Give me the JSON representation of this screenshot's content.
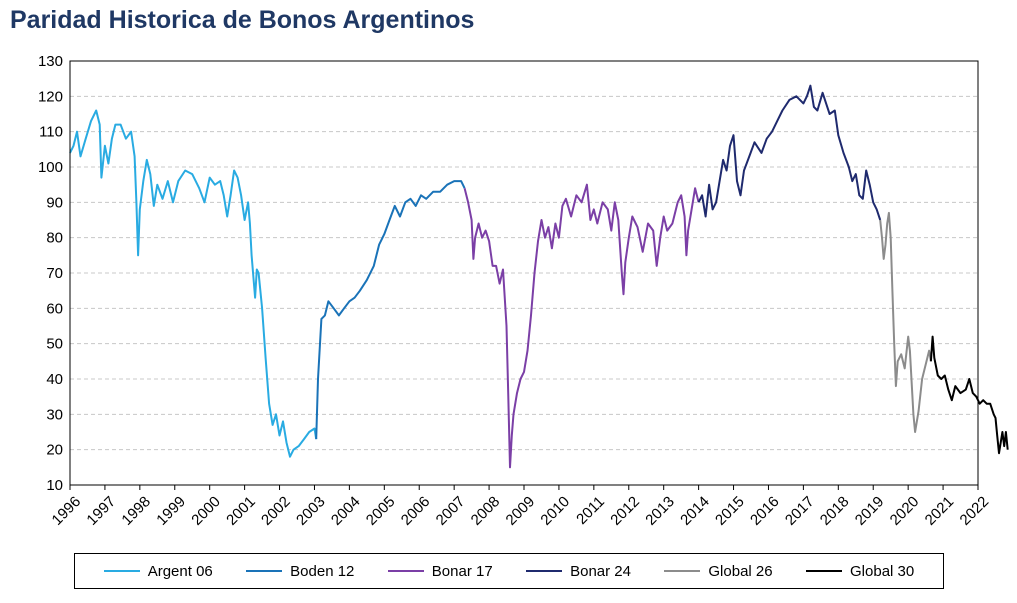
{
  "chart_data": {
    "type": "line",
    "title": "Paridad Historica de Bonos Argentinos",
    "xlabel": "",
    "ylabel": "",
    "xlim": [
      1996,
      2022
    ],
    "ylim": [
      10,
      130
    ],
    "yticks": [
      10,
      20,
      30,
      40,
      50,
      60,
      70,
      80,
      90,
      100,
      110,
      120,
      130
    ],
    "xticks": [
      "1996",
      "1997",
      "1998",
      "1999",
      "2000",
      "2001",
      "2002",
      "2003",
      "2004",
      "2005",
      "2006",
      "2007",
      "2008",
      "2009",
      "2010",
      "2011",
      "2012",
      "2013",
      "2014",
      "2015",
      "2016",
      "2017",
      "2018",
      "2019",
      "2020",
      "2021",
      "2022"
    ],
    "grid": true,
    "legend_position": "bottom",
    "series": [
      {
        "name": "Argent 06",
        "color": "#29abe2",
        "points": [
          [
            1996.0,
            104
          ],
          [
            1996.1,
            106
          ],
          [
            1996.2,
            110
          ],
          [
            1996.3,
            103
          ],
          [
            1996.45,
            108
          ],
          [
            1996.6,
            113
          ],
          [
            1996.75,
            116
          ],
          [
            1996.85,
            112
          ],
          [
            1996.9,
            97
          ],
          [
            1997.0,
            106
          ],
          [
            1997.1,
            101
          ],
          [
            1997.2,
            108
          ],
          [
            1997.3,
            112
          ],
          [
            1997.45,
            112
          ],
          [
            1997.6,
            108
          ],
          [
            1997.75,
            110
          ],
          [
            1997.85,
            103
          ],
          [
            1997.9,
            90
          ],
          [
            1997.95,
            75
          ],
          [
            1998.0,
            88
          ],
          [
            1998.1,
            96
          ],
          [
            1998.2,
            102
          ],
          [
            1998.3,
            98
          ],
          [
            1998.4,
            89
          ],
          [
            1998.5,
            95
          ],
          [
            1998.65,
            91
          ],
          [
            1998.8,
            96
          ],
          [
            1998.95,
            90
          ],
          [
            1999.1,
            96
          ],
          [
            1999.3,
            99
          ],
          [
            1999.5,
            98
          ],
          [
            1999.7,
            94
          ],
          [
            1999.85,
            90
          ],
          [
            2000.0,
            97
          ],
          [
            2000.15,
            95
          ],
          [
            2000.3,
            96
          ],
          [
            2000.4,
            92
          ],
          [
            2000.5,
            86
          ],
          [
            2000.6,
            92
          ],
          [
            2000.7,
            99
          ],
          [
            2000.8,
            97
          ],
          [
            2000.9,
            92
          ],
          [
            2001.0,
            85
          ],
          [
            2001.1,
            90
          ],
          [
            2001.15,
            84
          ],
          [
            2001.2,
            75
          ],
          [
            2001.3,
            63
          ],
          [
            2001.35,
            71
          ],
          [
            2001.4,
            70
          ],
          [
            2001.5,
            60
          ],
          [
            2001.6,
            46
          ],
          [
            2001.7,
            33
          ],
          [
            2001.8,
            27
          ],
          [
            2001.9,
            30
          ],
          [
            2002.0,
            24
          ],
          [
            2002.1,
            28
          ],
          [
            2002.2,
            22
          ],
          [
            2002.3,
            18
          ],
          [
            2002.4,
            20
          ],
          [
            2002.55,
            21
          ],
          [
            2002.7,
            23
          ],
          [
            2002.85,
            25
          ],
          [
            2003.0,
            26
          ],
          [
            2003.05,
            23
          ]
        ]
      },
      {
        "name": "Boden 12",
        "color": "#1a73b8",
        "points": [
          [
            2003.05,
            23
          ],
          [
            2003.1,
            40
          ],
          [
            2003.2,
            57
          ],
          [
            2003.3,
            58
          ],
          [
            2003.4,
            62
          ],
          [
            2003.55,
            60
          ],
          [
            2003.7,
            58
          ],
          [
            2003.85,
            60
          ],
          [
            2004.0,
            62
          ],
          [
            2004.15,
            63
          ],
          [
            2004.3,
            65
          ],
          [
            2004.5,
            68
          ],
          [
            2004.7,
            72
          ],
          [
            2004.85,
            78
          ],
          [
            2005.0,
            81
          ],
          [
            2005.15,
            85
          ],
          [
            2005.3,
            89
          ],
          [
            2005.45,
            86
          ],
          [
            2005.6,
            90
          ],
          [
            2005.75,
            91
          ],
          [
            2005.9,
            89
          ],
          [
            2006.05,
            92
          ],
          [
            2006.2,
            91
          ],
          [
            2006.4,
            93
          ],
          [
            2006.6,
            93
          ],
          [
            2006.8,
            95
          ],
          [
            2007.0,
            96
          ],
          [
            2007.2,
            96
          ],
          [
            2007.3,
            94
          ]
        ]
      },
      {
        "name": "Bonar 17",
        "color": "#7b3fa6",
        "points": [
          [
            2007.3,
            94
          ],
          [
            2007.4,
            90
          ],
          [
            2007.5,
            85
          ],
          [
            2007.55,
            74
          ],
          [
            2007.6,
            80
          ],
          [
            2007.7,
            84
          ],
          [
            2007.8,
            80
          ],
          [
            2007.9,
            82
          ],
          [
            2008.0,
            79
          ],
          [
            2008.1,
            72
          ],
          [
            2008.2,
            72
          ],
          [
            2008.3,
            67
          ],
          [
            2008.4,
            71
          ],
          [
            2008.5,
            55
          ],
          [
            2008.55,
            35
          ],
          [
            2008.6,
            15
          ],
          [
            2008.65,
            24
          ],
          [
            2008.7,
            30
          ],
          [
            2008.8,
            36
          ],
          [
            2008.9,
            40
          ],
          [
            2009.0,
            42
          ],
          [
            2009.1,
            48
          ],
          [
            2009.2,
            58
          ],
          [
            2009.3,
            70
          ],
          [
            2009.4,
            79
          ],
          [
            2009.5,
            85
          ],
          [
            2009.6,
            80
          ],
          [
            2009.7,
            83
          ],
          [
            2009.8,
            77
          ],
          [
            2009.9,
            84
          ],
          [
            2010.0,
            80
          ],
          [
            2010.1,
            89
          ],
          [
            2010.2,
            91
          ],
          [
            2010.35,
            86
          ],
          [
            2010.5,
            92
          ],
          [
            2010.65,
            90
          ],
          [
            2010.8,
            95
          ],
          [
            2010.9,
            85
          ],
          [
            2011.0,
            88
          ],
          [
            2011.1,
            84
          ],
          [
            2011.25,
            90
          ],
          [
            2011.4,
            88
          ],
          [
            2011.5,
            82
          ],
          [
            2011.6,
            90
          ],
          [
            2011.7,
            85
          ],
          [
            2011.8,
            70
          ],
          [
            2011.85,
            64
          ],
          [
            2011.9,
            73
          ],
          [
            2012.0,
            80
          ],
          [
            2012.1,
            86
          ],
          [
            2012.25,
            83
          ],
          [
            2012.4,
            76
          ],
          [
            2012.55,
            84
          ],
          [
            2012.7,
            82
          ],
          [
            2012.8,
            72
          ],
          [
            2012.9,
            80
          ],
          [
            2013.0,
            86
          ],
          [
            2013.1,
            82
          ],
          [
            2013.25,
            84
          ],
          [
            2013.4,
            90
          ],
          [
            2013.5,
            92
          ],
          [
            2013.6,
            86
          ],
          [
            2013.65,
            75
          ],
          [
            2013.7,
            82
          ],
          [
            2013.8,
            88
          ],
          [
            2013.9,
            94
          ],
          [
            2014.0,
            90
          ]
        ]
      },
      {
        "name": "Bonar 24",
        "color": "#1f2a6e",
        "points": [
          [
            2014.0,
            90
          ],
          [
            2014.1,
            92
          ],
          [
            2014.2,
            86
          ],
          [
            2014.3,
            95
          ],
          [
            2014.4,
            88
          ],
          [
            2014.5,
            90
          ],
          [
            2014.6,
            96
          ],
          [
            2014.7,
            102
          ],
          [
            2014.8,
            99
          ],
          [
            2014.9,
            106
          ],
          [
            2015.0,
            109
          ],
          [
            2015.1,
            96
          ],
          [
            2015.2,
            92
          ],
          [
            2015.3,
            99
          ],
          [
            2015.45,
            103
          ],
          [
            2015.6,
            107
          ],
          [
            2015.8,
            104
          ],
          [
            2015.95,
            108
          ],
          [
            2016.1,
            110
          ],
          [
            2016.25,
            113
          ],
          [
            2016.4,
            116
          ],
          [
            2016.6,
            119
          ],
          [
            2016.8,
            120
          ],
          [
            2017.0,
            118
          ],
          [
            2017.1,
            120
          ],
          [
            2017.2,
            123
          ],
          [
            2017.3,
            117
          ],
          [
            2017.4,
            116
          ],
          [
            2017.55,
            121
          ],
          [
            2017.65,
            118
          ],
          [
            2017.75,
            115
          ],
          [
            2017.9,
            116
          ],
          [
            2018.0,
            109
          ],
          [
            2018.15,
            104
          ],
          [
            2018.3,
            100
          ],
          [
            2018.4,
            96
          ],
          [
            2018.5,
            98
          ],
          [
            2018.6,
            92
          ],
          [
            2018.7,
            91
          ],
          [
            2018.8,
            99
          ],
          [
            2018.9,
            95
          ],
          [
            2019.0,
            90
          ],
          [
            2019.1,
            88
          ],
          [
            2019.2,
            85
          ]
        ]
      },
      {
        "name": "Global 26",
        "color": "#8c8c8c",
        "points": [
          [
            2019.2,
            85
          ],
          [
            2019.25,
            80
          ],
          [
            2019.3,
            74
          ],
          [
            2019.35,
            78
          ],
          [
            2019.4,
            84
          ],
          [
            2019.45,
            87
          ],
          [
            2019.5,
            80
          ],
          [
            2019.55,
            65
          ],
          [
            2019.6,
            50
          ],
          [
            2019.65,
            38
          ],
          [
            2019.7,
            45
          ],
          [
            2019.8,
            47
          ],
          [
            2019.9,
            43
          ],
          [
            2020.0,
            52
          ],
          [
            2020.05,
            48
          ],
          [
            2020.15,
            30
          ],
          [
            2020.2,
            25
          ],
          [
            2020.3,
            31
          ],
          [
            2020.4,
            40
          ],
          [
            2020.5,
            44
          ],
          [
            2020.6,
            48
          ],
          [
            2020.65,
            45
          ]
        ]
      },
      {
        "name": "Global 30",
        "color": "#000000",
        "points": [
          [
            2020.65,
            45
          ],
          [
            2020.7,
            52
          ],
          [
            2020.75,
            46
          ],
          [
            2020.85,
            41
          ],
          [
            2020.95,
            40
          ],
          [
            2021.05,
            41
          ],
          [
            2021.15,
            37
          ],
          [
            2021.25,
            34
          ],
          [
            2021.35,
            38
          ],
          [
            2021.5,
            36
          ],
          [
            2021.65,
            37
          ],
          [
            2021.75,
            40
          ],
          [
            2021.85,
            36
          ],
          [
            2021.95,
            35
          ],
          [
            2022.05,
            33
          ],
          [
            2022.15,
            34
          ],
          [
            2022.25,
            33
          ],
          [
            2022.35,
            33
          ],
          [
            2022.45,
            30
          ],
          [
            2022.5,
            29
          ],
          [
            2022.55,
            24
          ],
          [
            2022.6,
            19
          ],
          [
            2022.65,
            22
          ],
          [
            2022.7,
            25
          ],
          [
            2022.75,
            21
          ],
          [
            2022.8,
            25
          ],
          [
            2022.85,
            20
          ]
        ]
      }
    ]
  }
}
